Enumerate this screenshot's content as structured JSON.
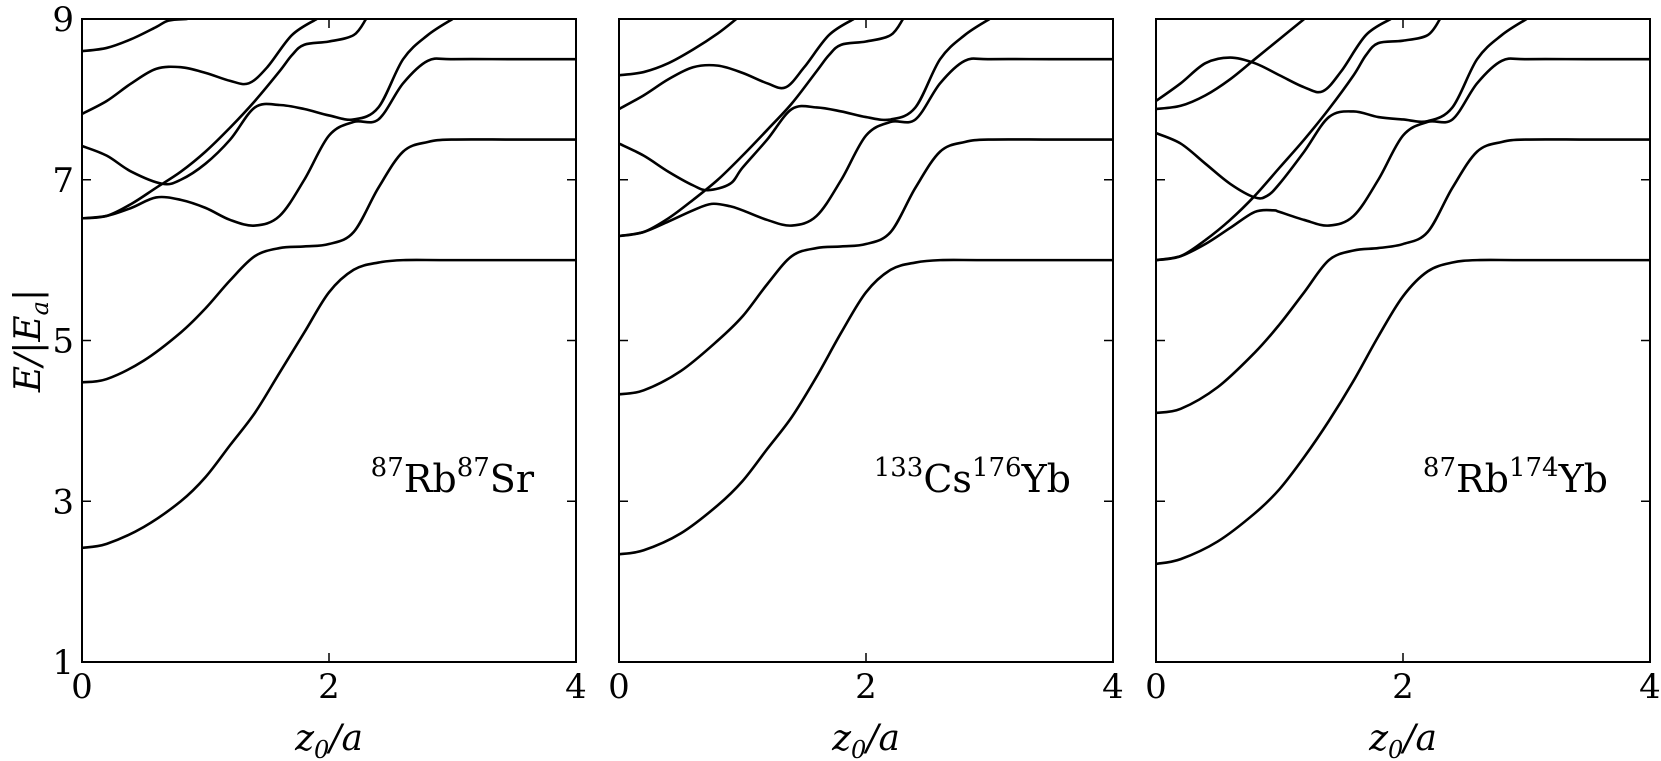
{
  "chart_data": [
    {
      "type": "line",
      "annotation": {
        "parts": [
          {
            "sup": "87"
          },
          {
            "text": "Rb"
          },
          {
            "sup": "87"
          },
          {
            "text": "Sr"
          }
        ]
      },
      "xlabel": {
        "var": "z",
        "sub": "0",
        "rest": "/a"
      },
      "ylabel": {
        "pre": "E/|E",
        "sub": "a",
        "post": "|"
      },
      "xlim": [
        0,
        4
      ],
      "ylim": [
        1,
        9
      ],
      "xticks": [
        0,
        2,
        4
      ],
      "yticks": [
        1,
        3,
        5,
        7,
        9
      ],
      "grid": false,
      "series": [
        {
          "x": [
            0,
            0.2,
            0.5,
            0.8,
            1.0,
            1.2,
            1.4,
            1.6,
            1.8,
            2.0,
            2.2,
            2.4,
            2.6,
            3.0,
            4.0
          ],
          "y": [
            2.42,
            2.47,
            2.68,
            3.0,
            3.3,
            3.7,
            4.1,
            4.6,
            5.1,
            5.6,
            5.88,
            5.97,
            6.0,
            6.0,
            6.0
          ]
        },
        {
          "x": [
            0,
            0.2,
            0.5,
            0.8,
            1.0,
            1.2,
            1.4,
            1.6,
            1.8,
            2.0,
            2.2,
            2.4,
            2.6,
            2.8,
            3.0,
            3.5,
            4.0
          ],
          "y": [
            4.48,
            4.52,
            4.75,
            5.1,
            5.4,
            5.75,
            6.05,
            6.15,
            6.17,
            6.2,
            6.35,
            6.9,
            7.35,
            7.47,
            7.5,
            7.5,
            7.5
          ]
        },
        {
          "x": [
            0,
            0.2,
            0.4,
            0.6,
            0.8,
            1.0,
            1.2,
            1.4,
            1.6,
            1.8,
            2.0,
            2.2,
            2.4,
            2.6,
            2.8,
            3.0,
            3.5,
            4.0
          ],
          "y": [
            6.52,
            6.55,
            6.65,
            6.78,
            6.75,
            6.65,
            6.5,
            6.43,
            6.55,
            7.0,
            7.55,
            7.72,
            7.75,
            8.2,
            8.48,
            8.5,
            8.5,
            8.5
          ]
        },
        {
          "x": [
            0,
            0.2,
            0.4,
            0.65,
            0.8,
            1.0,
            1.2,
            1.4,
            1.6,
            1.8,
            2.0,
            2.2,
            2.4,
            2.6,
            2.8,
            3.0
          ],
          "y": [
            7.42,
            7.3,
            7.1,
            6.95,
            7.0,
            7.2,
            7.5,
            7.9,
            7.93,
            7.88,
            7.8,
            7.75,
            7.9,
            8.5,
            8.8,
            9.0
          ]
        },
        {
          "x": [
            0,
            0.2,
            0.4,
            0.6,
            0.8,
            1.0,
            1.2,
            1.4,
            1.6,
            1.7,
            1.8,
            2.0,
            2.2,
            2.3
          ],
          "y": [
            6.52,
            6.55,
            6.7,
            6.9,
            7.1,
            7.35,
            7.65,
            7.98,
            8.35,
            8.55,
            8.68,
            8.72,
            8.8,
            9.0
          ]
        },
        {
          "x": [
            0,
            0.2,
            0.4,
            0.6,
            0.8,
            1.0,
            1.2,
            1.35,
            1.5,
            1.7,
            1.9
          ],
          "y": [
            7.82,
            7.98,
            8.2,
            8.38,
            8.4,
            8.33,
            8.23,
            8.2,
            8.4,
            8.8,
            9.0
          ]
        },
        {
          "x": [
            0,
            0.2,
            0.4,
            0.6,
            0.7,
            0.85
          ],
          "y": [
            8.6,
            8.64,
            8.75,
            8.9,
            8.98,
            9.0
          ]
        }
      ]
    },
    {
      "type": "line",
      "annotation": {
        "parts": [
          {
            "sup": "133"
          },
          {
            "text": "Cs"
          },
          {
            "sup": "176"
          },
          {
            "text": "Yb"
          }
        ]
      },
      "xlabel": {
        "var": "z",
        "sub": "0",
        "rest": "/a"
      },
      "xlim": [
        0,
        4
      ],
      "ylim": [
        1,
        9
      ],
      "xticks": [
        0,
        2,
        4
      ],
      "yticks": [
        1,
        3,
        5,
        7,
        9
      ],
      "grid": false,
      "series": [
        {
          "x": [
            0,
            0.2,
            0.5,
            0.8,
            1.0,
            1.2,
            1.4,
            1.6,
            1.8,
            2.0,
            2.2,
            2.4,
            2.6,
            3.0,
            4.0
          ],
          "y": [
            2.34,
            2.39,
            2.6,
            2.95,
            3.25,
            3.65,
            4.05,
            4.55,
            5.1,
            5.6,
            5.88,
            5.97,
            6.0,
            6.0,
            6.0
          ]
        },
        {
          "x": [
            0,
            0.2,
            0.5,
            0.8,
            1.0,
            1.2,
            1.4,
            1.6,
            1.8,
            2.0,
            2.2,
            2.4,
            2.6,
            2.8,
            3.0,
            3.5,
            4.0
          ],
          "y": [
            4.33,
            4.38,
            4.62,
            5.0,
            5.3,
            5.7,
            6.05,
            6.15,
            6.17,
            6.2,
            6.35,
            6.9,
            7.35,
            7.47,
            7.5,
            7.5,
            7.5
          ]
        },
        {
          "x": [
            0,
            0.2,
            0.4,
            0.6,
            0.75,
            0.9,
            1.0,
            1.2,
            1.4,
            1.6,
            1.8,
            2.0,
            2.2,
            2.4,
            2.6,
            2.8,
            3.0,
            3.5,
            4.0
          ],
          "y": [
            6.3,
            6.35,
            6.48,
            6.62,
            6.7,
            6.67,
            6.62,
            6.5,
            6.43,
            6.55,
            7.0,
            7.55,
            7.72,
            7.75,
            8.2,
            8.48,
            8.5,
            8.5,
            8.5
          ]
        },
        {
          "x": [
            0,
            0.2,
            0.4,
            0.6,
            0.72,
            0.9,
            1.0,
            1.2,
            1.4,
            1.6,
            1.8,
            2.0,
            2.2,
            2.4,
            2.6,
            2.8,
            3.0
          ],
          "y": [
            7.45,
            7.3,
            7.1,
            6.93,
            6.87,
            6.95,
            7.15,
            7.5,
            7.88,
            7.9,
            7.85,
            7.78,
            7.75,
            7.9,
            8.5,
            8.8,
            9.0
          ]
        },
        {
          "x": [
            0,
            0.2,
            0.4,
            0.6,
            0.8,
            1.0,
            1.2,
            1.4,
            1.6,
            1.7,
            1.8,
            2.0,
            2.2,
            2.3
          ],
          "y": [
            6.3,
            6.35,
            6.52,
            6.75,
            7.0,
            7.3,
            7.62,
            7.95,
            8.35,
            8.55,
            8.68,
            8.72,
            8.8,
            9.0
          ]
        },
        {
          "x": [
            0,
            0.2,
            0.4,
            0.6,
            0.8,
            1.0,
            1.2,
            1.35,
            1.5,
            1.7,
            1.9
          ],
          "y": [
            7.88,
            8.05,
            8.25,
            8.4,
            8.42,
            8.33,
            8.2,
            8.15,
            8.4,
            8.8,
            9.0
          ]
        },
        {
          "x": [
            0,
            0.2,
            0.4,
            0.6,
            0.8,
            0.95
          ],
          "y": [
            8.3,
            8.34,
            8.45,
            8.62,
            8.82,
            9.0
          ]
        }
      ]
    },
    {
      "type": "line",
      "annotation": {
        "parts": [
          {
            "sup": "87"
          },
          {
            "text": "Rb"
          },
          {
            "sup": "174"
          },
          {
            "text": "Yb"
          }
        ]
      },
      "xlabel": {
        "var": "z",
        "sub": "0",
        "rest": "/a"
      },
      "xlim": [
        0,
        4
      ],
      "ylim": [
        1,
        9
      ],
      "xticks": [
        0,
        2,
        4
      ],
      "yticks": [
        1,
        3,
        5,
        7,
        9
      ],
      "grid": false,
      "series": [
        {
          "x": [
            0,
            0.2,
            0.5,
            0.8,
            1.0,
            1.2,
            1.4,
            1.6,
            1.8,
            2.0,
            2.2,
            2.4,
            2.6,
            3.0,
            4.0
          ],
          "y": [
            2.22,
            2.28,
            2.5,
            2.85,
            3.15,
            3.55,
            4.0,
            4.5,
            5.05,
            5.55,
            5.86,
            5.97,
            6.0,
            6.0,
            6.0
          ]
        },
        {
          "x": [
            0,
            0.2,
            0.5,
            0.8,
            1.0,
            1.2,
            1.4,
            1.6,
            1.8,
            2.0,
            2.2,
            2.4,
            2.6,
            2.8,
            3.0,
            3.5,
            4.0
          ],
          "y": [
            4.1,
            4.15,
            4.42,
            4.85,
            5.2,
            5.6,
            6.0,
            6.12,
            6.15,
            6.2,
            6.35,
            6.9,
            7.35,
            7.47,
            7.5,
            7.5,
            7.5
          ]
        },
        {
          "x": [
            0,
            0.2,
            0.4,
            0.6,
            0.8,
            0.95,
            1.0,
            1.2,
            1.4,
            1.6,
            1.8,
            2.0,
            2.2,
            2.4,
            2.6,
            2.8,
            3.0,
            3.5,
            4.0
          ],
          "y": [
            6.0,
            6.05,
            6.2,
            6.4,
            6.6,
            6.62,
            6.6,
            6.5,
            6.43,
            6.55,
            7.0,
            7.55,
            7.72,
            7.75,
            8.2,
            8.48,
            8.5,
            8.5,
            8.5
          ]
        },
        {
          "x": [
            0,
            0.2,
            0.4,
            0.6,
            0.8,
            0.9,
            1.0,
            1.2,
            1.4,
            1.6,
            1.8,
            2.0,
            2.2,
            2.4,
            2.6,
            2.8,
            3.0
          ],
          "y": [
            7.58,
            7.45,
            7.2,
            6.95,
            6.78,
            6.8,
            6.95,
            7.35,
            7.78,
            7.85,
            7.78,
            7.75,
            7.73,
            7.9,
            8.5,
            8.8,
            9.0
          ]
        },
        {
          "x": [
            0,
            0.2,
            0.4,
            0.6,
            0.8,
            1.0,
            1.2,
            1.4,
            1.6,
            1.7,
            1.8,
            2.0,
            2.2,
            2.3
          ],
          "y": [
            6.0,
            6.05,
            6.25,
            6.5,
            6.8,
            7.15,
            7.5,
            7.88,
            8.3,
            8.55,
            8.7,
            8.73,
            8.8,
            9.0
          ]
        },
        {
          "x": [
            0,
            0.2,
            0.4,
            0.6,
            0.8,
            1.0,
            1.2,
            1.35,
            1.5,
            1.7,
            1.9
          ],
          "y": [
            7.98,
            8.2,
            8.45,
            8.52,
            8.45,
            8.3,
            8.15,
            8.1,
            8.35,
            8.8,
            9.0
          ]
        },
        {
          "x": [
            0,
            0.2,
            0.4,
            0.6,
            0.8,
            1.0,
            1.2
          ],
          "y": [
            7.88,
            7.92,
            8.05,
            8.25,
            8.5,
            8.75,
            9.0
          ]
        }
      ]
    }
  ]
}
